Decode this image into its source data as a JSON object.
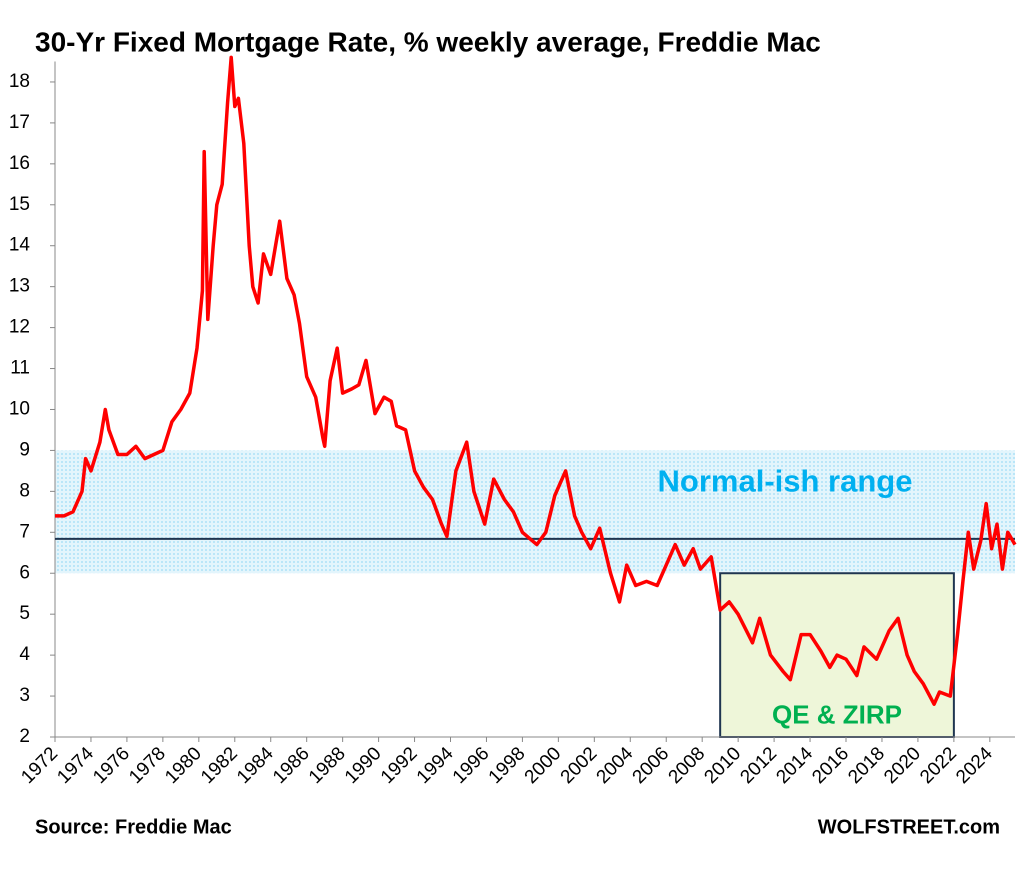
{
  "chart_data": {
    "type": "line",
    "title": "30-Yr Fixed Mortgage Rate, % weekly average, Freddie Mac",
    "source": "Source: Freddie Mac",
    "credit": "WOLFSTREET.com",
    "xlim": [
      1972,
      2025.4
    ],
    "ylim": [
      2,
      18.5
    ],
    "xticks": [
      1972,
      1974,
      1976,
      1978,
      1980,
      1982,
      1984,
      1986,
      1988,
      1990,
      1992,
      1994,
      1996,
      1998,
      2000,
      2002,
      2004,
      2006,
      2008,
      2010,
      2012,
      2014,
      2016,
      2018,
      2020,
      2022,
      2024
    ],
    "yticks": [
      2,
      3,
      4,
      5,
      6,
      7,
      8,
      9,
      10,
      11,
      12,
      13,
      14,
      15,
      16,
      17,
      18
    ],
    "band": {
      "y0": 6,
      "y1": 9,
      "label": "Normal-ish range",
      "color": "#00b0f0"
    },
    "box": {
      "x0": 2009,
      "x1": 2022,
      "y0": 2,
      "y1": 6,
      "label": "QE & ZIRP",
      "color": "#00b050"
    },
    "hline": 6.84,
    "series": [
      {
        "name": "30-Yr Fixed Mortgage Rate",
        "color": "#ff0000",
        "x": [
          1972.0,
          1972.5,
          1973.0,
          1973.5,
          1973.7,
          1974.0,
          1974.5,
          1974.8,
          1975.0,
          1975.5,
          1976.0,
          1976.5,
          1977.0,
          1977.5,
          1978.0,
          1978.5,
          1979.0,
          1979.5,
          1979.9,
          1980.2,
          1980.3,
          1980.5,
          1980.8,
          1981.0,
          1981.3,
          1981.6,
          1981.8,
          1982.0,
          1982.2,
          1982.5,
          1982.8,
          1983.0,
          1983.3,
          1983.6,
          1984.0,
          1984.5,
          1984.9,
          1985.3,
          1985.6,
          1986.0,
          1986.5,
          1986.9,
          1987.0,
          1987.3,
          1987.7,
          1988.0,
          1988.5,
          1988.9,
          1989.3,
          1989.8,
          1990.3,
          1990.7,
          1991.0,
          1991.5,
          1992.0,
          1992.5,
          1993.0,
          1993.5,
          1993.8,
          1994.3,
          1994.9,
          1995.3,
          1995.9,
          1996.4,
          1997.0,
          1997.5,
          1998.0,
          1998.8,
          1999.3,
          1999.8,
          2000.4,
          2000.9,
          2001.3,
          2001.8,
          2002.3,
          2002.9,
          2003.4,
          2003.8,
          2004.3,
          2004.9,
          2005.5,
          2006.0,
          2006.5,
          2007.0,
          2007.5,
          2007.9,
          2008.5,
          2009.0,
          2009.5,
          2010.0,
          2010.8,
          2011.2,
          2011.8,
          2012.5,
          2012.9,
          2013.5,
          2014.0,
          2014.6,
          2015.1,
          2015.5,
          2016.0,
          2016.6,
          2017.0,
          2017.7,
          2018.4,
          2018.9,
          2019.4,
          2019.8,
          2020.3,
          2020.9,
          2021.2,
          2021.8,
          2022.2,
          2022.5,
          2022.8,
          2023.1,
          2023.5,
          2023.8,
          2024.1,
          2024.4,
          2024.7,
          2025.0,
          2025.4
        ],
        "values": [
          7.4,
          7.4,
          7.5,
          8.0,
          8.8,
          8.5,
          9.2,
          10.0,
          9.5,
          8.9,
          8.9,
          9.1,
          8.8,
          8.9,
          9.0,
          9.7,
          10.0,
          10.4,
          11.5,
          12.9,
          16.3,
          12.2,
          14.0,
          15.0,
          15.5,
          17.5,
          18.6,
          17.4,
          17.6,
          16.5,
          14.0,
          13.0,
          12.6,
          13.8,
          13.3,
          14.6,
          13.2,
          12.8,
          12.1,
          10.8,
          10.3,
          9.3,
          9.1,
          10.7,
          11.5,
          10.4,
          10.5,
          10.6,
          11.2,
          9.9,
          10.3,
          10.2,
          9.6,
          9.5,
          8.5,
          8.1,
          7.8,
          7.2,
          6.9,
          8.5,
          9.2,
          8.0,
          7.2,
          8.3,
          7.8,
          7.5,
          7.0,
          6.7,
          7.0,
          7.9,
          8.5,
          7.4,
          7.0,
          6.6,
          7.1,
          6.0,
          5.3,
          6.2,
          5.7,
          5.8,
          5.7,
          6.2,
          6.7,
          6.2,
          6.6,
          6.1,
          6.4,
          5.1,
          5.3,
          5.0,
          4.3,
          4.9,
          4.0,
          3.6,
          3.4,
          4.5,
          4.5,
          4.1,
          3.7,
          4.0,
          3.9,
          3.5,
          4.2,
          3.9,
          4.6,
          4.9,
          4.0,
          3.6,
          3.3,
          2.8,
          3.1,
          3.0,
          4.5,
          5.8,
          7.0,
          6.1,
          6.8,
          7.7,
          6.6,
          7.2,
          6.1,
          7.0,
          6.7
        ]
      }
    ]
  }
}
